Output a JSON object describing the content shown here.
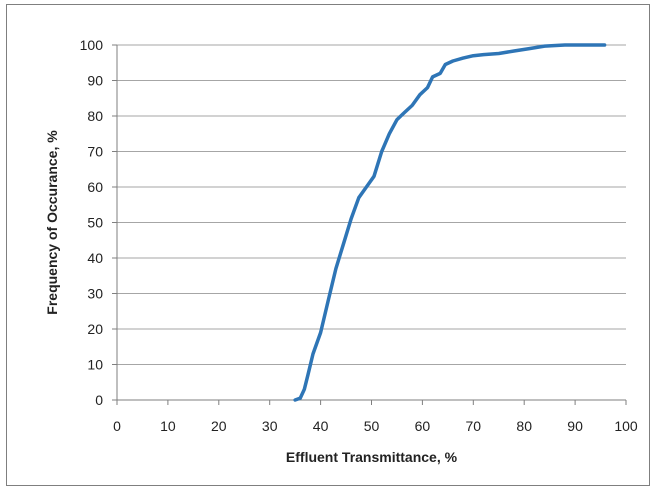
{
  "chart_data": {
    "type": "line",
    "title": "",
    "xlabel": "Effluent Transmittance, %",
    "ylabel": "Frequency of Occurance, %",
    "xlim": [
      0,
      100
    ],
    "ylim": [
      0,
      100
    ],
    "x_ticks": [
      "0",
      "10",
      "20",
      "30",
      "40",
      "50",
      "60",
      "70",
      "80",
      "90",
      "100"
    ],
    "y_ticks": [
      "0",
      "10",
      "20",
      "30",
      "40",
      "50",
      "60",
      "70",
      "80",
      "90",
      "100"
    ],
    "grid": "horizontal",
    "legend": "none",
    "series": [
      {
        "color": "#2e75b6",
        "points": [
          [
            35.0,
            0
          ],
          [
            36.0,
            0.5
          ],
          [
            36.8,
            3
          ],
          [
            37.5,
            7
          ],
          [
            38.5,
            13
          ],
          [
            40.0,
            19
          ],
          [
            41.5,
            28
          ],
          [
            43.0,
            37
          ],
          [
            44.5,
            44
          ],
          [
            46.0,
            51
          ],
          [
            47.5,
            57
          ],
          [
            49.0,
            60
          ],
          [
            50.5,
            63
          ],
          [
            52.0,
            70
          ],
          [
            53.5,
            75
          ],
          [
            55.0,
            79
          ],
          [
            56.5,
            81
          ],
          [
            58.0,
            83
          ],
          [
            59.5,
            86
          ],
          [
            61.0,
            88
          ],
          [
            62.0,
            91
          ],
          [
            63.5,
            92
          ],
          [
            64.5,
            94.5
          ],
          [
            66.0,
            95.5
          ],
          [
            68.0,
            96.3
          ],
          [
            70.0,
            97
          ],
          [
            72.0,
            97.3
          ],
          [
            75.0,
            97.6
          ],
          [
            78.0,
            98.3
          ],
          [
            81.0,
            99
          ],
          [
            84.0,
            99.7
          ],
          [
            88.0,
            100
          ],
          [
            92.0,
            100
          ],
          [
            95.8,
            100
          ]
        ]
      }
    ]
  }
}
